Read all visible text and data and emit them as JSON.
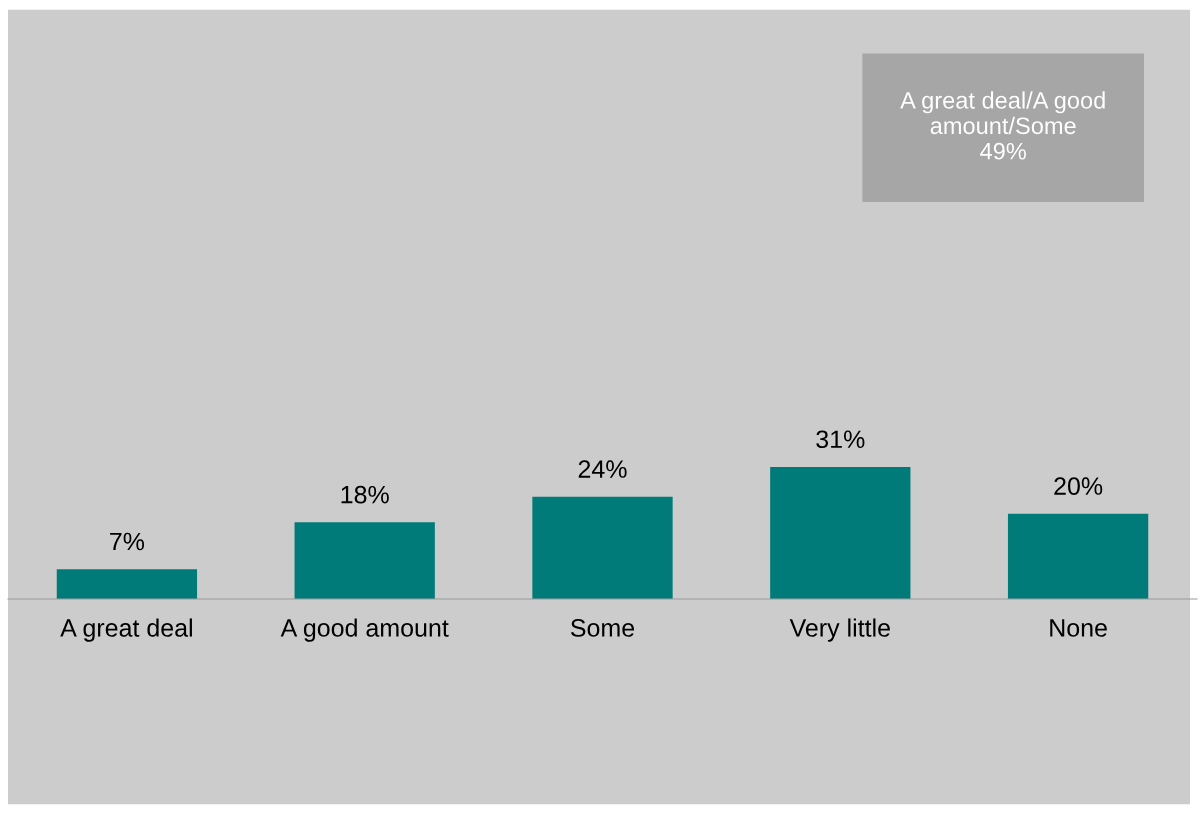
{
  "chart_data": {
    "type": "bar",
    "categories": [
      "A great deal",
      "A good amount",
      "Some",
      "Very little",
      "None"
    ],
    "values": [
      7,
      18,
      24,
      31,
      20
    ],
    "value_labels": [
      "7%",
      "18%",
      "24%",
      "31%",
      "20%"
    ],
    "color": "#007b7a",
    "tick_labels": "x",
    "annotations": [
      "A great deal/A good\namount/Some\n49%"
    ],
    "legend": false
  }
}
